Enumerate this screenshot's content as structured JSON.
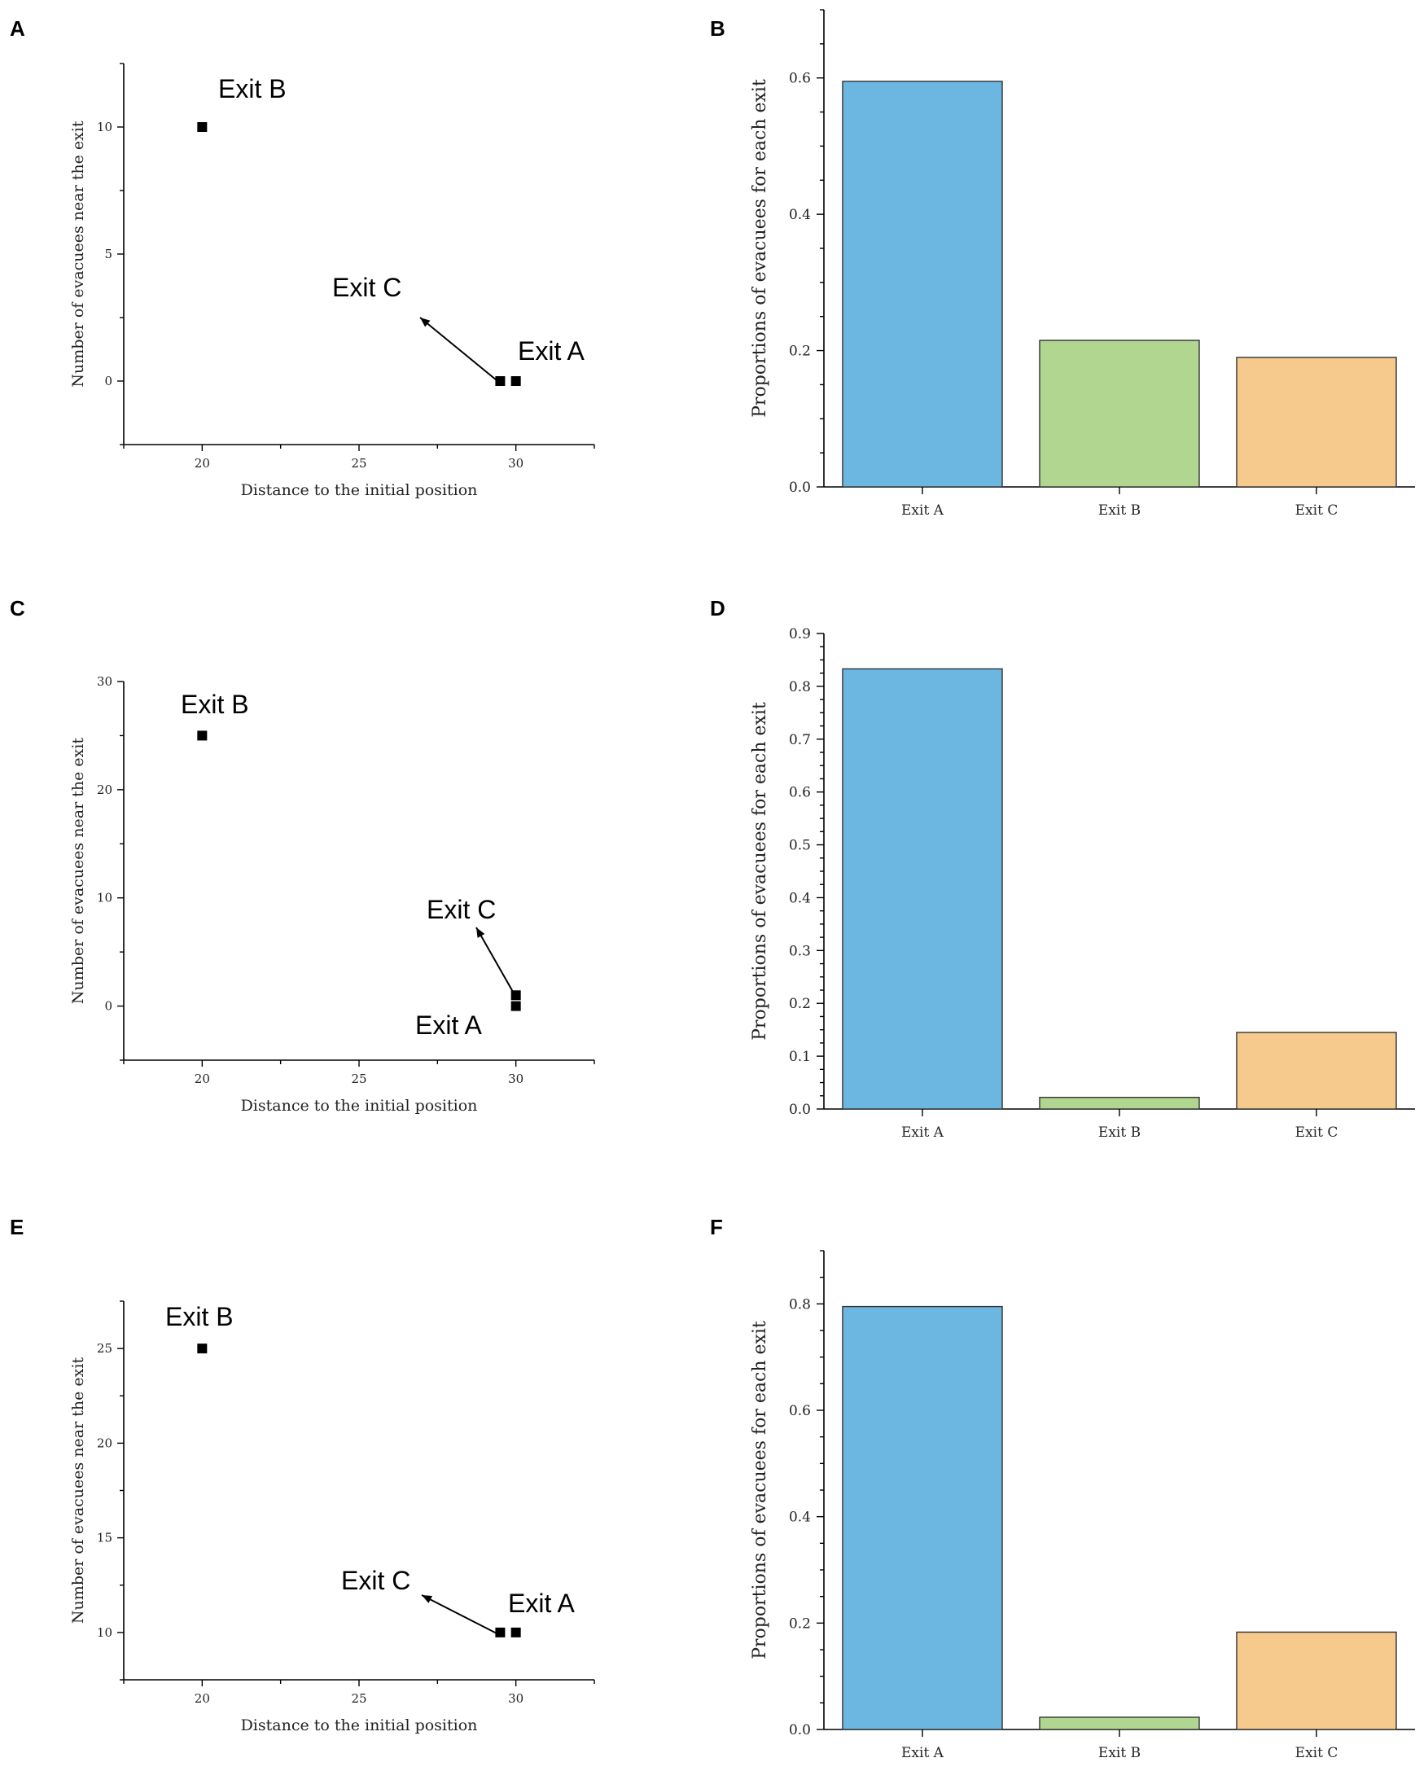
{
  "figure": {
    "panels": [
      "A",
      "B",
      "C",
      "D",
      "E",
      "F"
    ]
  },
  "chart_data": [
    {
      "id": "A",
      "type": "scatter",
      "xlabel": "Distance to the initial position",
      "ylabel": "Number of evacuees near the exit",
      "xlim": [
        17.5,
        32.5
      ],
      "ylim": [
        -2.5,
        12.5
      ],
      "xticks": [
        20,
        25,
        30
      ],
      "yticks": [
        0,
        5,
        10
      ],
      "points": [
        {
          "label": "Exit B",
          "x": 20,
          "y": 10
        },
        {
          "label": "Exit C",
          "x": 29.5,
          "y": 0
        },
        {
          "label": "Exit A",
          "x": 30,
          "y": 0
        }
      ]
    },
    {
      "id": "B",
      "type": "bar",
      "ylabel": "Proportions of evacuees for each exit",
      "categories": [
        "Exit A",
        "Exit B",
        "Exit C"
      ],
      "values": [
        0.595,
        0.215,
        0.19
      ],
      "colors": [
        "#6cb7e2",
        "#b1d68f",
        "#f6c98d"
      ],
      "ylim": [
        0,
        0.7
      ],
      "yticks": [
        0.0,
        0.2,
        0.4,
        0.6
      ],
      "ytick_labels": [
        "0.0",
        "0.2",
        "0.4",
        "0.6"
      ],
      "minor_step": 0.1
    },
    {
      "id": "C",
      "type": "scatter",
      "xlabel": "Distance to the initial position",
      "ylabel": "Number of evacuees near the exit",
      "xlim": [
        17.5,
        32.5
      ],
      "ylim": [
        -5,
        30
      ],
      "xticks": [
        20,
        25,
        30
      ],
      "yticks": [
        0,
        10,
        20,
        30
      ],
      "points": [
        {
          "label": "Exit B",
          "x": 20,
          "y": 25
        },
        {
          "label": "Exit C",
          "x": 30,
          "y": 1
        },
        {
          "label": "Exit A",
          "x": 30,
          "y": 0
        }
      ]
    },
    {
      "id": "D",
      "type": "bar",
      "ylabel": "Proportions of evacuees for each exit",
      "categories": [
        "Exit A",
        "Exit B",
        "Exit C"
      ],
      "values": [
        0.833,
        0.022,
        0.145
      ],
      "colors": [
        "#6cb7e2",
        "#b1d68f",
        "#f6c98d"
      ],
      "ylim": [
        0,
        0.9
      ],
      "yticks": [
        0.0,
        0.1,
        0.2,
        0.3,
        0.4,
        0.5,
        0.6,
        0.7,
        0.8,
        0.9
      ],
      "ytick_labels": [
        "0.0",
        "0.1",
        "0.2",
        "0.3",
        "0.4",
        "0.5",
        "0.6",
        "0.7",
        "0.8",
        "0.9"
      ],
      "minor_step": 0.05
    },
    {
      "id": "E",
      "type": "scatter",
      "xlabel": "Distance to the initial position",
      "ylabel": "Number of evacuees near the exit",
      "xlim": [
        17.5,
        32.5
      ],
      "ylim": [
        7.5,
        27.5
      ],
      "xticks": [
        20,
        25,
        30
      ],
      "yticks": [
        10,
        15,
        20,
        25
      ],
      "points": [
        {
          "label": "Exit B",
          "x": 20,
          "y": 25
        },
        {
          "label": "Exit C",
          "x": 29.5,
          "y": 10
        },
        {
          "label": "Exit A",
          "x": 30,
          "y": 10
        }
      ]
    },
    {
      "id": "F",
      "type": "bar",
      "ylabel": "Proportions of evacuees for each exit",
      "categories": [
        "Exit A",
        "Exit B",
        "Exit C"
      ],
      "values": [
        0.795,
        0.023,
        0.183
      ],
      "colors": [
        "#6cb7e2",
        "#b1d68f",
        "#f6c98d"
      ],
      "ylim": [
        0,
        0.9
      ],
      "yticks": [
        0.0,
        0.2,
        0.4,
        0.6,
        0.8
      ],
      "ytick_labels": [
        "0.0",
        "0.2",
        "0.4",
        "0.6",
        "0.8"
      ],
      "minor_step": 0.1
    }
  ]
}
